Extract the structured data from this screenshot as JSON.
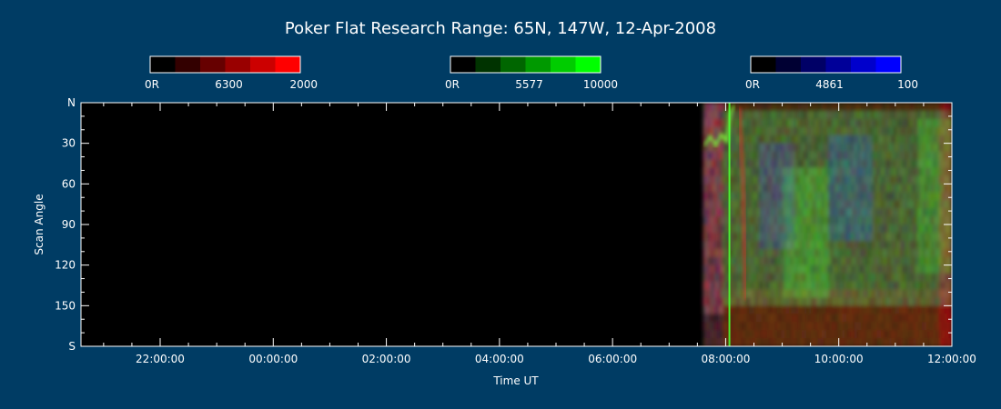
{
  "background_color": "#003c64",
  "chart_data": {
    "type": "heatmap",
    "title": "Poker Flat Research Range: 65N, 147W, 12-Apr-2008",
    "xlabel": "Time UT",
    "ylabel": "Scan Angle",
    "x_ticks": [
      "22:00:00",
      "00:00:00",
      "02:00:00",
      "04:00:00",
      "06:00:00",
      "08:00:00",
      "10:00:00",
      "12:00:00"
    ],
    "y_ticks": [
      "N",
      "30",
      "60",
      "90",
      "120",
      "150",
      "S"
    ],
    "y_tick_values": [
      0,
      30,
      60,
      90,
      120,
      150,
      180
    ],
    "x_range_hours": [
      20.6,
      36.0
    ],
    "x_tick_hours": [
      22,
      24,
      26,
      28,
      30,
      32,
      34,
      36
    ],
    "y_range": [
      0,
      180
    ],
    "data_start_hour": 31.6,
    "colorbars": [
      {
        "name": "6300",
        "min_label": "0R",
        "max_label": "2000",
        "colors": [
          "#000000",
          "#330000",
          "#660000",
          "#990000",
          "#cc0000",
          "#ff0000"
        ]
      },
      {
        "name": "5577",
        "min_label": "0R",
        "max_label": "10000",
        "colors": [
          "#000000",
          "#003300",
          "#006600",
          "#009900",
          "#00cc00",
          "#00ff00"
        ]
      },
      {
        "name": "4861",
        "min_label": "0R",
        "max_label": "100",
        "colors": [
          "#000000",
          "#000033",
          "#000066",
          "#000099",
          "#0000cc",
          "#0000ff"
        ]
      }
    ]
  }
}
